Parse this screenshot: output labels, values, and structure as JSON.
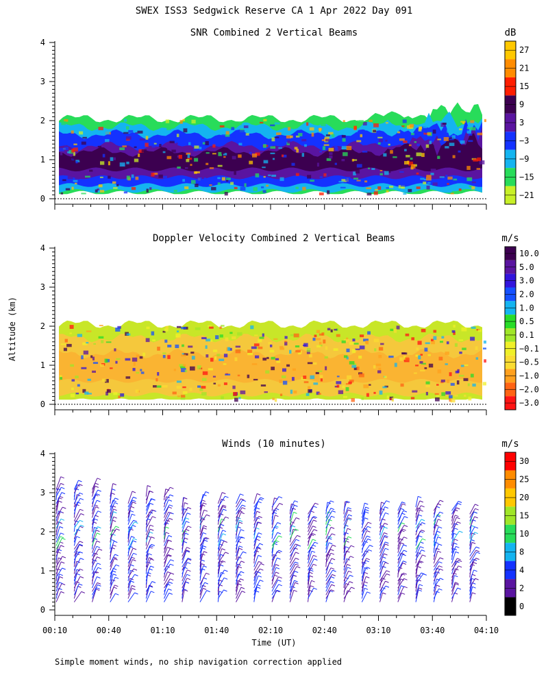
{
  "page": {
    "title": "SWEX ISS3 Sedgwick Reserve CA   1 Apr 2022 Day 091",
    "footer": "Simple moment winds, no ship navigation correction applied",
    "ylabel": "Altitude (km)",
    "xlabel": "Time (UT)"
  },
  "chart_data": [
    {
      "type": "heatmap",
      "title": "SNR Combined 2 Vertical Beams",
      "unit": "dB",
      "ylim": [
        0,
        4
      ],
      "yticks": [
        "0",
        "1",
        "2",
        "3",
        "4"
      ],
      "colorbar_labels": [
        "27",
        "21",
        "15",
        "9",
        "3",
        "−3",
        "−9",
        "−15",
        "−21"
      ],
      "colorbar_colors": [
        "#ffc800",
        "#ff8c00",
        "#ff1e00",
        "#3c0050",
        "#5a14a0",
        "#1432ff",
        "#14b4f0",
        "#28dc5a",
        "#c8f028"
      ],
      "layers": [
        {
          "name": "−15",
          "bottom": 0.15,
          "top": 2.05,
          "color": "#28dc5a"
        },
        {
          "name": "−9",
          "bottom": 0.2,
          "top": 1.85,
          "color": "#14b4f0"
        },
        {
          "name": "−3",
          "bottom": 0.35,
          "top": 1.65,
          "color": "#1432ff"
        },
        {
          "name": "3",
          "bottom": 0.55,
          "top": 1.35,
          "color": "#5a14a0"
        },
        {
          "name": "9",
          "bottom": 0.75,
          "top": 1.2,
          "color": "#3c0050"
        }
      ]
    },
    {
      "type": "heatmap",
      "title": "Doppler Velocity Combined 2 Vertical Beams",
      "unit": "m/s",
      "ylim": [
        0,
        4
      ],
      "yticks": [
        "0",
        "1",
        "2",
        "3",
        "4"
      ],
      "colorbar_labels": [
        "10.0",
        "5.0",
        "3.0",
        "2.0",
        "1.0",
        "0.5",
        "0.1",
        "−0.1",
        "−0.5",
        "−1.0",
        "−2.0",
        "−3.0"
      ],
      "colorbar_colors": [
        "#3c0050",
        "#5a14a0",
        "#3214dc",
        "#1450ff",
        "#14b4f0",
        "#28dc28",
        "#a0e628",
        "#f0f028",
        "#fadc32",
        "#ffa01e",
        "#ff6414",
        "#ff1414"
      ],
      "layers": [
        {
          "name": "−0.1",
          "bottom": 0.1,
          "top": 2.05,
          "color": "#c8e628"
        },
        {
          "name": "−0.5",
          "bottom": 0.25,
          "top": 1.7,
          "color": "#f5c83c"
        },
        {
          "name": "−1.0",
          "bottom": 0.6,
          "top": 1.3,
          "color": "#fab432"
        }
      ]
    },
    {
      "type": "barbs",
      "title": "Winds (10 minutes)",
      "unit": "m/s",
      "ylim": [
        0,
        4
      ],
      "yticks": [
        "0",
        "1",
        "2",
        "3",
        "4"
      ],
      "xticks": [
        "00:10",
        "00:40",
        "01:10",
        "01:40",
        "02:10",
        "02:40",
        "03:10",
        "03:40",
        "04:10"
      ],
      "colorbar_labels": [
        "30",
        "25",
        "20",
        "15",
        "10",
        "8",
        "4",
        "2",
        "0"
      ],
      "colorbar_colors": [
        "#ff0000",
        "#ff8c00",
        "#ffc800",
        "#a0e628",
        "#28dc5a",
        "#14b4f0",
        "#1432ff",
        "#5a14a0",
        "#000000"
      ],
      "x_range_minutes": [
        10,
        250
      ],
      "profile_times_minutes": [
        10,
        20,
        30,
        40,
        50,
        60,
        70,
        80,
        90,
        100,
        110,
        120,
        130,
        140,
        150,
        160,
        170,
        180,
        190,
        200,
        210,
        220,
        230,
        240
      ],
      "max_altitude_km": [
        3.1,
        3.1,
        3.1,
        2.9,
        2.8,
        2.9,
        2.9,
        2.7,
        2.8,
        2.8,
        2.8,
        2.8,
        2.7,
        2.6,
        2.5,
        2.6,
        2.6,
        2.5,
        2.6,
        2.6,
        2.7,
        2.6,
        2.6,
        2.5
      ]
    }
  ]
}
